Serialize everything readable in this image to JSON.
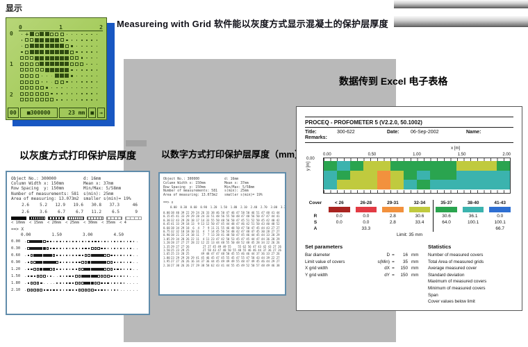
{
  "labels": {
    "display": "显示",
    "main_title": "Measureing with Grid 软件能以灰度方式显示混凝土的保护层厚度",
    "left_title": "以灰度方式打印保护层厚度",
    "mid_title": "以数字方式打印保护层厚度（mm）",
    "excel_title": "数据传到 Excel 电子表格"
  },
  "lcd": {
    "x_ticks": [
      "0",
      "1",
      "2"
    ],
    "y_ticks": [
      "0",
      "1",
      "2"
    ],
    "status": [
      "00",
      "■300000",
      "23 mm",
      "■",
      "→"
    ],
    "grid": [
      "1+43443331111111",
      "1334444432111111",
      "1344444443211111",
      "2344444444321111",
      "3334444444332111",
      "3333444444333111",
      "3333344444211111",
      "3333110444211111",
      "3333110332111111",
      "3333321111111111",
      "3333332111111111",
      "3333333211111111"
    ]
  },
  "gray_print": {
    "header": [
      {
        "l": "Object No.: 300000",
        "r": "d: 16mm"
      },
      {
        "l": "Column Width x: 150mm",
        "r": "Mean x: 37mm"
      },
      {
        "l": "Row Spacing  y: 150mm",
        "r": "Min/Max: 5/58mm"
      },
      {
        "l": "Number of measurements: 581",
        "r": "s(min): 25mm"
      },
      {
        "l": "Area of measuring: 13.073m2",
        "r": "smaller s(min)= 19%"
      }
    ],
    "hist1": [
      "2.6",
      "5.2",
      "12.9",
      "19.6",
      "30.8",
      "37.3",
      "46"
    ],
    "hist2": [
      "2.6",
      "3.6",
      "6.7",
      "6.7",
      "11.2",
      "6.5",
      "9"
    ],
    "legend_labels": [
      "< 10mm",
      "< 15mm",
      "< 20mm",
      "< 25mm",
      "< 30mm",
      "< 35mm",
      "< 4"
    ],
    "axis_label": "==> X",
    "x_axis": [
      "0.00",
      "1.50",
      "3.00",
      "4.50"
    ],
    "y_labels": [
      "0.00",
      "0.30",
      "0.60",
      "0.90",
      "1.20",
      "1.50",
      "1.80",
      "2.10"
    ],
    "grid": [
      "034444322111111111112222111111111110",
      "034444432211111111222333221111111100",
      "023444444321111112233444433211111100",
      "023344444432111122334444443321111100",
      "022334443321111223344444433322111100",
      "022233311001112233444443333221111000",
      "023332000011122233344433222111110000",
      "033333222221112223333322211111000000"
    ]
  },
  "numeric_print": {
    "axis_label": "==> x",
    "x_axis": "0.00  0.30  0.60  0.90  1.20  1.50  1.80  2.10  2.40  2.70  3.00  3.30",
    "rows": [
      {
        "y": "0.00",
        "v": "38 40 39 22 29 24 26 33 38 46 50 47 46 47 58 50 46 51 47 48 41 44"
      },
      {
        "y": "0.15",
        "v": "45 41 33 29 29 28 24 33 51 48 56 55 50 48 47 48 56 50 47 47 44 41"
      },
      {
        "y": "0.30",
        "v": "32 43 29 28 18 17 14 33 55 50 48 56 50 47 45 51 52 50 45 42 40 42"
      },
      {
        "y": "0.45",
        "v": "41 33 29 18 13  9 13 12 50 47 45 44 48 47 46 42 51 50 43 40 48 52"
      },
      {
        "y": "0.60",
        "v": "38 34 29 18  6  4  7  9 11 21 55 46 48 50 47 50 47 45 44 43 27 27"
      },
      {
        "y": "0.75",
        "v": "32 32 18 18 10 11  4  7 14 45 56 54 48 42 47 48 47 45 30 28 27 27"
      },
      {
        "y": "0.90",
        "v": "38 21 22 24 18 11  7  7 13 28 41 48 50 47 45 46 44 45 44 33 28 29"
      },
      {
        "y": "1.05",
        "v": "29 34 28 26 22 11  4 11 23 47 42 50 53 45 47 45 44 47 44 36 28 29"
      },
      {
        "y": "1.20",
        "v": "28 27 27 27 28 22 12 22 13 44 48 55 50 48 52 48 45 28 34 22 26 26"
      },
      {
        "y": "1.35",
        "v": "29 27 27 26        27 27 45 49 49 55    55 62 56 47 43 42 43 27 26"
      },
      {
        "y": "1.50",
        "v": "25 23 29 25        27 58 43 47 48 50 55 48 55 46 46 44 37 36 27 26"
      },
      {
        "y": "1.65",
        "v": "25 23 28 25       49 48 47 47 48 50 45 55 46 46 44 37 36 33 27 26"
      },
      {
        "y": "1.80",
        "v": "23 29 29 28 29 41 45 46 45 47 45 55 45 47 55 47 58 43 44 39 22 27"
      },
      {
        "y": "1.95",
        "v": "27 27 26 26 16 34 37 36 44 45 49 49 49 55 48 47 49 45 46 44 29 27"
      },
      {
        "y": "2.10",
        "v": "27 30 26 26 27 29 38 58 62 43 41 44 55 45 49 52 50 57 48 49 46 38"
      }
    ]
  },
  "excel": {
    "app_title": "PROCEQ - PROFOMETER 5 (V2.2.0, 50.1002)",
    "meta": {
      "title_label": "Title:",
      "title_value": "300-622",
      "date_label": "Date:",
      "date_value": "06-Sep-2002",
      "name_label": "Name:",
      "remarks_label": "Remarks:"
    },
    "chart": {
      "x_axis_label": "x [m]",
      "y_axis_label": "y [m]",
      "y_first_tick": "0.00",
      "x_ticks": [
        "0.00",
        "0.50",
        "1.00",
        "1.50",
        "2.00"
      ],
      "palette": {
        "G": "#2aa44f",
        "T": "#3bb3ae",
        "Y": "#c0ca3e",
        "O": "#f2913d"
      },
      "rows": [
        "GTGYYGGGGGYYYG",
        "TGYYOYGTGGTTTT",
        "TYYYOYTGTTTTTT"
      ]
    },
    "legend": {
      "cover_label": "Cover",
      "ranges": [
        "< 26",
        "26-28",
        "29-31",
        "32-34",
        "35-37",
        "38-40",
        "41-43"
      ],
      "colors": [
        "#a92420",
        "#e23b44",
        "#f2913d",
        "#c0ca3e",
        "#2aa44f",
        "#3bb3ae",
        "#2e6fd2"
      ],
      "r_label": "R",
      "r": [
        "0.0",
        "0.0",
        "2.8",
        "30.6",
        "30.6",
        "36.1",
        "0.0"
      ],
      "s_label": "S",
      "s": [
        "0.0",
        "0.0",
        "2.8",
        "33.4",
        "64.0",
        "100.1",
        "100.1"
      ],
      "a_label": "A",
      "a_left": "33.3",
      "a_right": "66.7",
      "limit": "Limit: 35 mm"
    },
    "set_parameters": {
      "title": "Set parameters",
      "rows": [
        {
          "label": "Bar diameter",
          "sym": "D",
          "val": "16",
          "unit": "mm"
        },
        {
          "label": "Limit value of covers",
          "sym": "s(Min)",
          "val": "35",
          "unit": "mm"
        },
        {
          "label": "X grid width",
          "sym": "dX",
          "val": "150",
          "unit": "mm"
        },
        {
          "label": "Y grid width",
          "sym": "dY",
          "val": "150",
          "unit": "mm"
        }
      ]
    },
    "statistics": {
      "title": "Statistics",
      "rows": [
        "Number of measured covers",
        "Total Area of measured grids",
        "Average measured cover",
        "Standard deviation",
        "Maximum of measured covers",
        "Minimum of measured covers",
        "Span",
        "Cover values below limit"
      ]
    }
  },
  "chart_data": {
    "type": "heatmap",
    "x_ticks": [
      0.0,
      0.5,
      1.0,
      1.5,
      2.0
    ],
    "xlabel": "x [m]",
    "ylabel": "y [m]",
    "legend_ranges": [
      "< 26",
      "26-28",
      "29-31",
      "32-34",
      "35-37",
      "38-40",
      "41-43"
    ],
    "R": [
      0.0,
      0.0,
      2.8,
      30.6,
      30.6,
      36.1,
      0.0
    ],
    "S": [
      0.0,
      0.0,
      2.8,
      33.4,
      64.0,
      100.1,
      100.1
    ],
    "A": [
      33.3,
      66.7
    ],
    "limit_mm": 35,
    "cells_by_class": [
      "GTGYYGGGGGYYYG",
      "TGYYOYGTGGTTTT",
      "TYYYOYTGTTTTTT"
    ]
  }
}
